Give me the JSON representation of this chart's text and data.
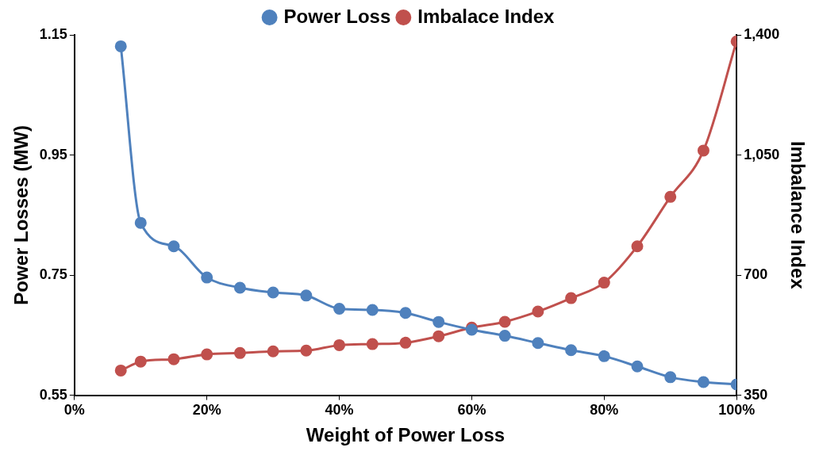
{
  "chart_data": {
    "type": "line",
    "xlabel": "Weight of Power Loss",
    "ylabel": "Power Losses (MW)",
    "y2label": "Imbalance Index",
    "x": [
      7,
      10,
      15,
      20,
      25,
      30,
      35,
      40,
      45,
      50,
      55,
      60,
      65,
      70,
      75,
      80,
      85,
      90,
      95,
      100
    ],
    "series": [
      {
        "name": "Power Loss",
        "color": "#4f81bd",
        "values": [
          1.131,
          0.837,
          0.798,
          0.746,
          0.729,
          0.721,
          0.716,
          0.694,
          0.692,
          0.687,
          0.672,
          0.659,
          0.649,
          0.637,
          0.625,
          0.615,
          0.598,
          0.58,
          0.572,
          0.568
        ]
      },
      {
        "name": "Imbalace Index",
        "color": "#c0504d",
        "axis": "y2",
        "values": [
          422,
          448,
          455,
          469,
          473,
          478,
          480,
          496,
          499,
          503,
          522,
          547,
          564,
          594,
          633,
          678,
          784,
          928,
          1063,
          1381
        ]
      }
    ],
    "xlim": [
      0,
      100
    ],
    "xticks": [
      {
        "value": 0,
        "label": "0%"
      },
      {
        "value": 20,
        "label": "20%"
      },
      {
        "value": 40,
        "label": "40%"
      },
      {
        "value": 60,
        "label": "60%"
      },
      {
        "value": 80,
        "label": "80%"
      },
      {
        "value": 100,
        "label": "100%"
      }
    ],
    "ylim": [
      0.55,
      1.15
    ],
    "yticks": [
      {
        "value": 0.55,
        "label": "0.55"
      },
      {
        "value": 0.75,
        "label": "0.75"
      },
      {
        "value": 0.95,
        "label": "0.95"
      },
      {
        "value": 1.15,
        "label": "1.15"
      }
    ],
    "y2lim": [
      350,
      1400
    ],
    "y2ticks": [
      {
        "value": 350,
        "label": "350"
      },
      {
        "value": 700,
        "label": "700"
      },
      {
        "value": 1050,
        "label": "1,050"
      },
      {
        "value": 1400,
        "label": "1,400"
      }
    ],
    "legend": "top",
    "marker": "circle",
    "line_style": "solid",
    "grid": false
  }
}
